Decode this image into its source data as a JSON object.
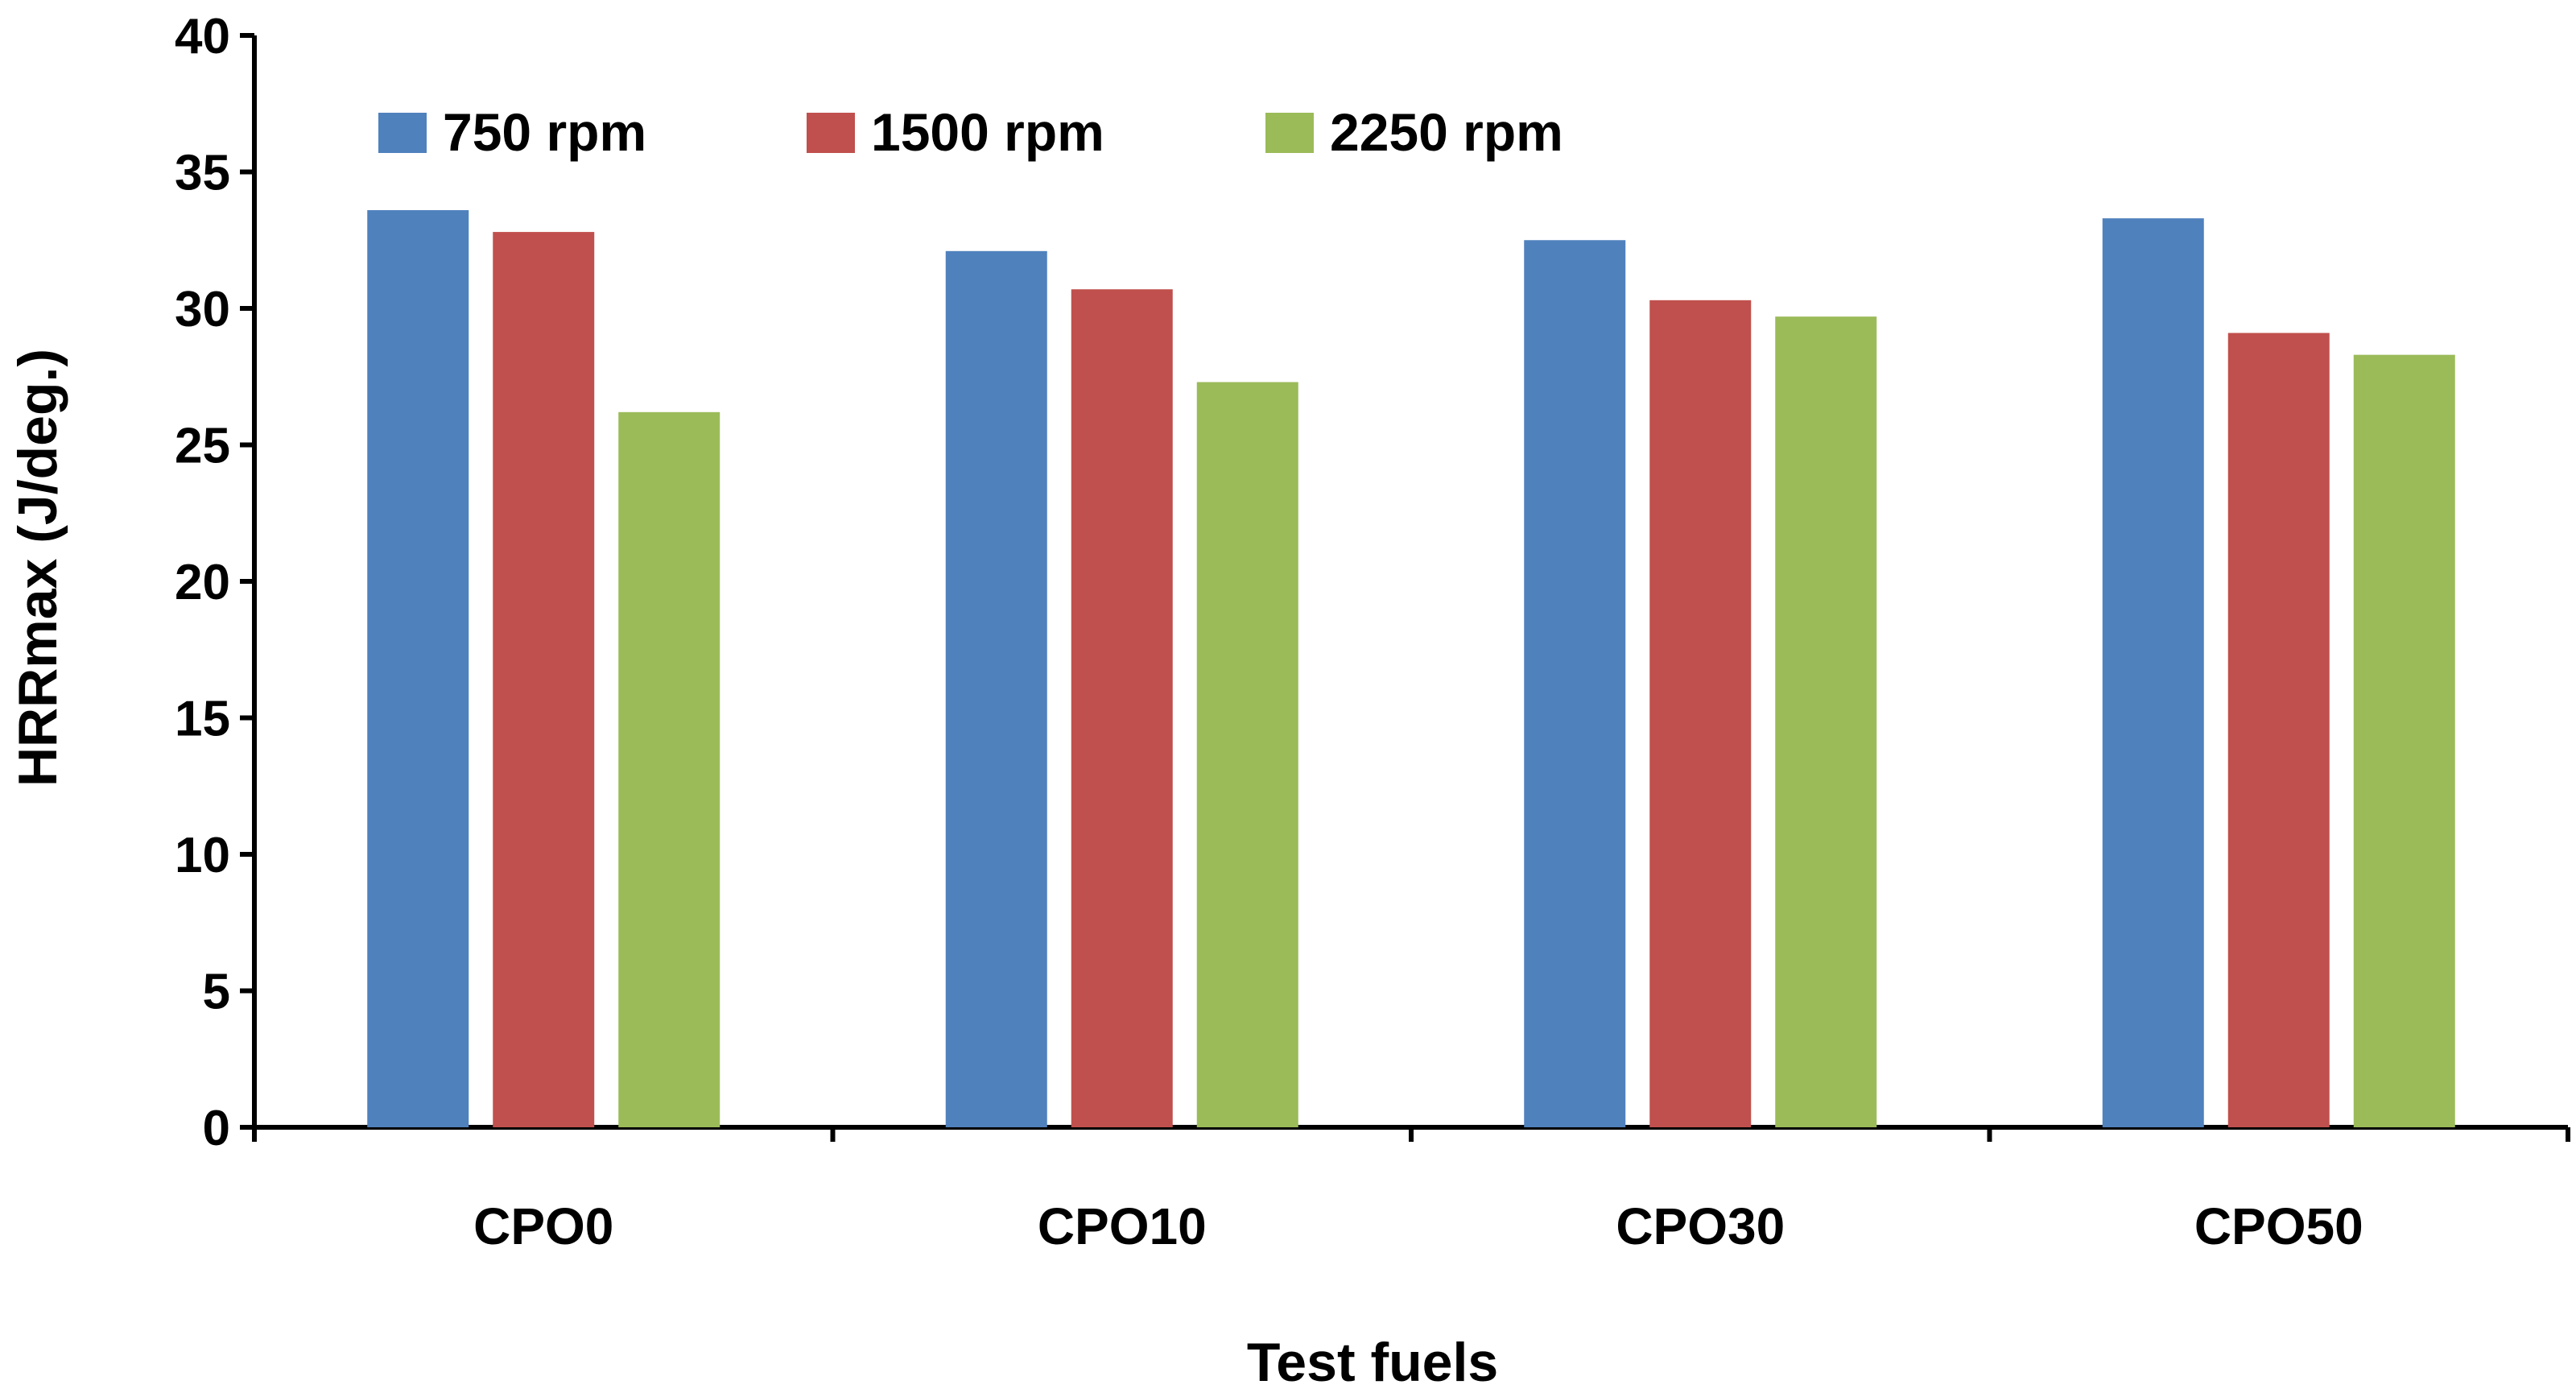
{
  "chart_data": {
    "type": "bar",
    "title": "",
    "xlabel": "Test fuels",
    "ylabel": "HRRmax (J/deg.)",
    "ylim": [
      0,
      40
    ],
    "ytick_step": 5,
    "yticks": [
      "0",
      "5",
      "10",
      "15",
      "20",
      "25",
      "30",
      "35",
      "40"
    ],
    "categories": [
      "CPO0",
      "CPO10",
      "CPO30",
      "CPO50"
    ],
    "series": [
      {
        "name": "750 rpm",
        "color": "#4F81BD",
        "values": [
          33.6,
          32.1,
          32.5,
          33.3
        ]
      },
      {
        "name": "1500 rpm",
        "color": "#C0504D",
        "values": [
          32.8,
          30.7,
          30.3,
          29.1
        ]
      },
      {
        "name": "2250 rpm",
        "color": "#9BBB59",
        "values": [
          26.2,
          27.3,
          29.7,
          28.3
        ]
      }
    ],
    "legend_position": "top-left",
    "grid": false
  }
}
